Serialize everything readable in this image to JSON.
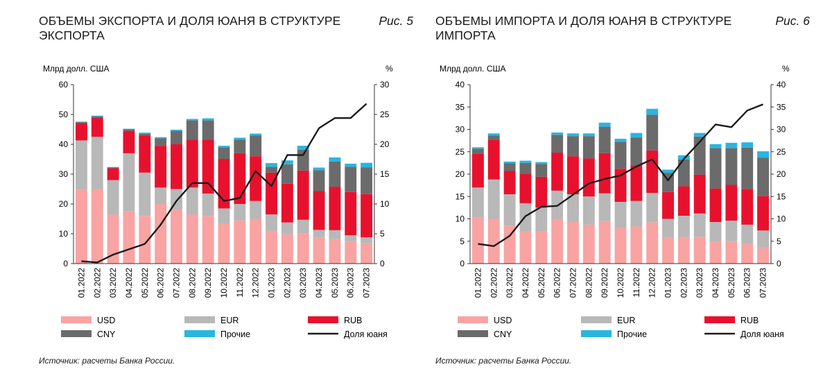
{
  "charts": [
    {
      "title": "ОБЪЕМЫ ЭКСПОРТА И ДОЛЯ ЮАНЯ В СТРУКТУРЕ ЭКСПОРТА",
      "fig": "Рис. 5",
      "source": "Источник: расчеты Банка России."
    },
    {
      "title": "ОБЪЕМЫ ИМПОРТА И ДОЛЯ ЮАНЯ В СТРУКТУРЕ ИМПОРТА",
      "fig": "Рис. 6",
      "source": "Источник: расчеты Банка России."
    }
  ],
  "colors": {
    "USD": "#f9a3a3",
    "EUR": "#b8b8b8",
    "RUB": "#e8112d",
    "CNY": "#6b6b6b",
    "Прочие": "#29b6e0",
    "line": "#1a1a1a"
  },
  "chart_data": [
    {
      "type": "bar",
      "stacked": true,
      "title": "ОБЪЕМЫ ЭКСПОРТА И ДОЛЯ ЮАНЯ В СТРУКТУРЕ ЭКСПОРТА",
      "ylabel_left": "Млрд долл. США",
      "ylabel_right": "%",
      "ylim_left": [
        0,
        60
      ],
      "ylim_right": [
        0,
        30
      ],
      "yticks_left": [
        0,
        10,
        20,
        30,
        40,
        50,
        60
      ],
      "yticks_right": [
        0,
        5,
        10,
        15,
        20,
        25,
        30
      ],
      "categories": [
        "01.2022",
        "02.2022",
        "03.2022",
        "04.2022",
        "05.2022",
        "06.2022",
        "07.2022",
        "08.2022",
        "09.2022",
        "10.2022",
        "11.2022",
        "12.2022",
        "01.2023",
        "02.2023",
        "03.2023",
        "04.2023",
        "05.2023",
        "06.2023",
        "07.2023"
      ],
      "series": [
        {
          "name": "USD",
          "values": [
            24.8,
            25.0,
            16.5,
            17.5,
            16.0,
            20.0,
            18.0,
            16.5,
            16.0,
            13.5,
            14.5,
            15.0,
            11.0,
            9.8,
            10.2,
            8.8,
            8.2,
            7.5,
            6.8
          ]
        },
        {
          "name": "EUR",
          "values": [
            16.5,
            17.5,
            11.5,
            19.5,
            14.5,
            5.5,
            7.0,
            9.0,
            7.5,
            5.0,
            5.5,
            6.0,
            5.5,
            4.0,
            4.5,
            2.5,
            3.0,
            2.0,
            2.0
          ]
        },
        {
          "name": "RUB",
          "values": [
            5.8,
            6.5,
            4.0,
            7.5,
            12.5,
            14.0,
            15.0,
            16.0,
            18.0,
            16.5,
            17.0,
            15.0,
            14.0,
            13.0,
            16.5,
            13.0,
            14.5,
            14.5,
            14.5
          ]
        },
        {
          "name": "CNY",
          "values": [
            0.3,
            0.3,
            0.2,
            0.5,
            0.5,
            2.5,
            4.5,
            6.5,
            6.5,
            4.0,
            4.5,
            7.0,
            2.0,
            6.5,
            7.0,
            7.0,
            8.5,
            8.5,
            9.0
          ]
        },
        {
          "name": "Прочие",
          "values": [
            0.2,
            0.3,
            0.2,
            0.2,
            0.4,
            0.4,
            0.4,
            0.5,
            0.7,
            0.5,
            0.7,
            0.6,
            1.2,
            1.3,
            1.3,
            0.9,
            1.4,
            1.0,
            1.5
          ]
        }
      ],
      "line": {
        "name": "Доля юаня",
        "axis": "right",
        "values": [
          0.4,
          0.2,
          1.5,
          2.4,
          3.3,
          6.5,
          10.5,
          13.5,
          13.5,
          10.5,
          11.0,
          15.5,
          13.0,
          18.2,
          18.2,
          22.7,
          24.4,
          24.4,
          26.8
        ]
      }
    },
    {
      "type": "bar",
      "stacked": true,
      "title": "ОБЪЕМЫ ИМПОРТА И ДОЛЯ ЮАНЯ В СТРУКТУРЕ ИМПОРТА",
      "ylabel_left": "Млрд долл. США",
      "ylabel_right": "%",
      "ylim_left": [
        0,
        40
      ],
      "ylim_right": [
        0,
        40
      ],
      "yticks_left": [
        0,
        5,
        10,
        15,
        20,
        25,
        30,
        35,
        40
      ],
      "yticks_right": [
        0,
        5,
        10,
        15,
        20,
        25,
        30,
        35,
        40
      ],
      "categories": [
        "01.2022",
        "02.2022",
        "03.2022",
        "04.2022",
        "05.2022",
        "06.2022",
        "07.2022",
        "08.2022",
        "09.2022",
        "10.2022",
        "11.2022",
        "12.2022",
        "01.2023",
        "02.2023",
        "03.2023",
        "04.2023",
        "05.2023",
        "06.2023",
        "07.2023"
      ],
      "series": [
        {
          "name": "USD",
          "values": [
            10.3,
            10.0,
            8.5,
            7.2,
            7.2,
            10.0,
            9.3,
            8.7,
            9.5,
            8.0,
            8.3,
            9.2,
            5.8,
            5.8,
            6.0,
            4.9,
            5.0,
            4.4,
            3.5
          ]
        },
        {
          "name": "EUR",
          "values": [
            6.7,
            8.8,
            7.0,
            6.3,
            5.3,
            6.3,
            6.2,
            6.3,
            6.2,
            5.8,
            5.7,
            6.6,
            4.2,
            4.9,
            5.2,
            4.4,
            4.6,
            4.3,
            3.9
          ]
        },
        {
          "name": "RUB",
          "values": [
            7.5,
            8.8,
            5.2,
            6.5,
            6.9,
            8.5,
            8.5,
            8.5,
            9.0,
            7.4,
            8.0,
            9.5,
            6.0,
            6.6,
            8.7,
            7.5,
            8.0,
            8.0,
            7.7
          ]
        },
        {
          "name": "CNY",
          "values": [
            1.2,
            1.0,
            1.7,
            2.5,
            2.9,
            4.0,
            4.5,
            5.0,
            5.9,
            6.0,
            6.2,
            8.0,
            4.3,
            6.0,
            8.5,
            9.0,
            8.2,
            9.2,
            8.6
          ]
        },
        {
          "name": "Прочие",
          "values": [
            0.3,
            0.5,
            0.4,
            0.5,
            0.4,
            0.5,
            0.6,
            0.6,
            0.9,
            0.7,
            1.0,
            1.3,
            0.7,
            0.9,
            0.8,
            0.9,
            1.2,
            1.2,
            1.4
          ]
        }
      ],
      "line": {
        "name": "Доля юаня",
        "axis": "right",
        "values": [
          4.4,
          3.9,
          6.2,
          10.6,
          12.7,
          12.9,
          15.4,
          17.9,
          18.9,
          19.7,
          21.7,
          23.3,
          18.6,
          23.4,
          27.2,
          31.1,
          30.5,
          34.2,
          35.6
        ]
      }
    }
  ]
}
